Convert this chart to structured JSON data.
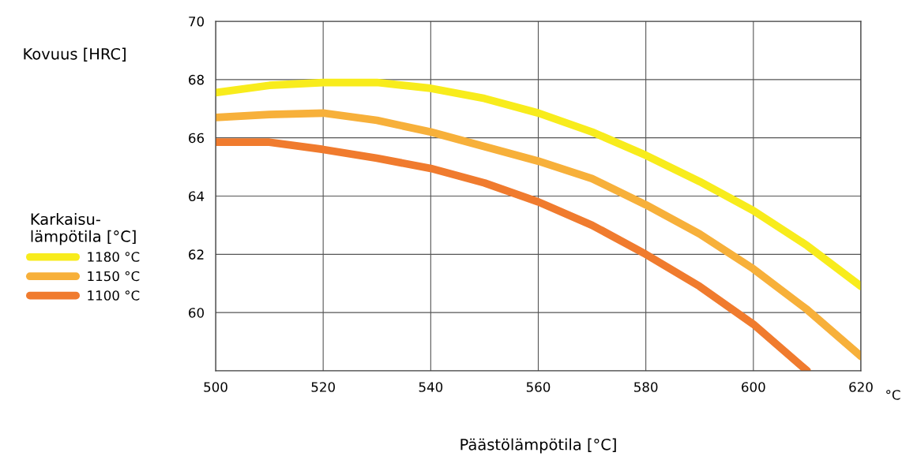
{
  "chart_data": {
    "type": "line",
    "xlabel": "Päästölämpötila [°C]",
    "ylabel": "Kovuus [HRC]",
    "legend_title": "Karkaisu-\nlämpötila [°C]",
    "annotations": [
      "°C"
    ],
    "xlim": [
      500,
      620
    ],
    "xticks": [
      500,
      520,
      540,
      560,
      580,
      600,
      620
    ],
    "ylim": [
      58,
      70
    ],
    "yticks": [
      {
        "value": 58,
        "label": null
      },
      60,
      62,
      64,
      66,
      68,
      70
    ],
    "grid": true,
    "legend": "left",
    "marker": "none",
    "line_style": "solid",
    "x": [
      500,
      510,
      520,
      530,
      540,
      550,
      560,
      570,
      580,
      590,
      600,
      610,
      620
    ],
    "series": [
      {
        "name": "1180 °C",
        "color": "#f8ec1c",
        "values": [
          67.55,
          67.8,
          67.9,
          67.9,
          67.7,
          67.35,
          66.85,
          66.2,
          65.4,
          64.5,
          63.5,
          62.3,
          60.9
        ]
      },
      {
        "name": "1150 °C",
        "color": "#f7b03a",
        "values": [
          66.7,
          66.8,
          66.85,
          66.6,
          66.2,
          65.7,
          65.2,
          64.6,
          63.7,
          62.7,
          61.5,
          60.1,
          58.5
        ]
      },
      {
        "name": "1100 °C",
        "color": "#f07b2e",
        "values": [
          65.85,
          65.85,
          65.6,
          65.3,
          64.95,
          64.45,
          63.8,
          63.0,
          62.0,
          60.9,
          59.6,
          58.0,
          null
        ]
      }
    ]
  }
}
